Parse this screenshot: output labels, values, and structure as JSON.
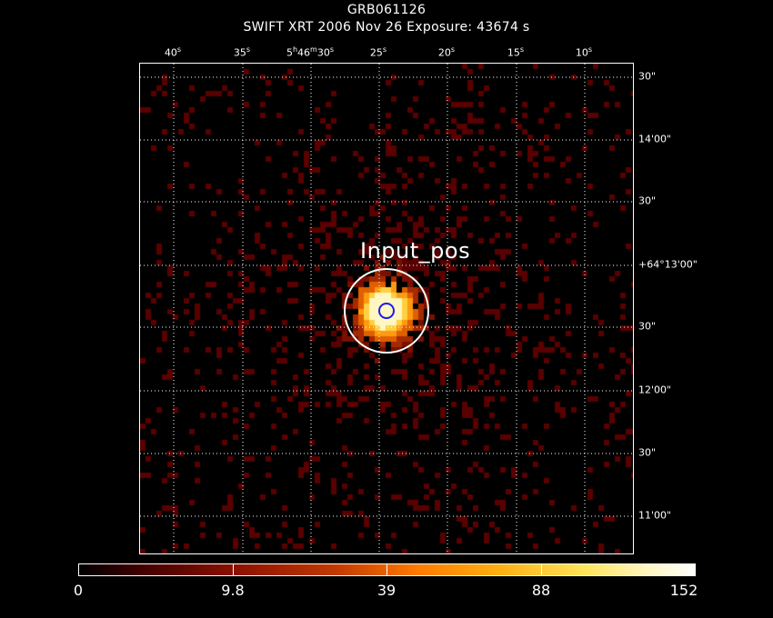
{
  "header": {
    "object_name": "GRB061126",
    "subtitle": "SWIFT XRT   2006 Nov 26    Exposure: 43674 s"
  },
  "ra_ticks": [
    "40s",
    "35s",
    "5h46m30s",
    "25s",
    "20s",
    "15s",
    "10s"
  ],
  "dec_ticks": [
    "30\"",
    "14'00\"",
    "30\"",
    "+64°13'00\"",
    "30\"",
    "12'00\"",
    "30\"",
    "11'00\""
  ],
  "source": {
    "label": "Input_pos"
  },
  "colorbar": {
    "labels": [
      "0",
      "9.8",
      "39",
      "88",
      "152"
    ],
    "colors": [
      "#000000",
      "#400000",
      "#8a0f00",
      "#c33a00",
      "#ff7a00",
      "#ffae10",
      "#ffe45a",
      "#ffffff"
    ]
  },
  "colors": {
    "background": "#000000",
    "grid": "#ffffff",
    "source_circle": "#ffffff",
    "position_circle": "#1a1aff"
  }
}
